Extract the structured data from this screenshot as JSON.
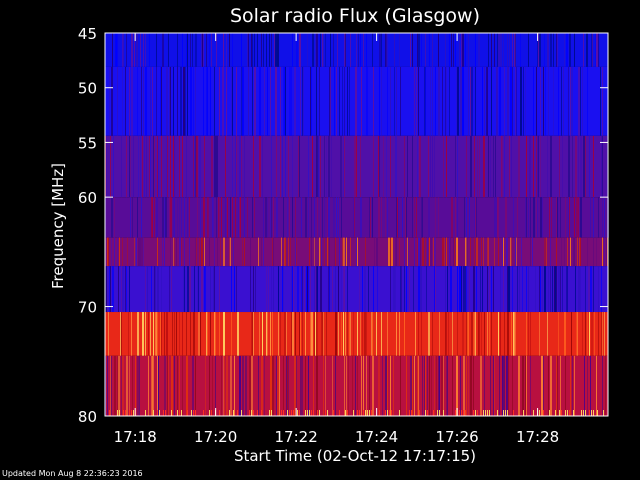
{
  "chart_data": {
    "type": "heatmap",
    "title": "Solar radio Flux (Glasgow)",
    "xlabel": "Start Time (02-Oct-12 17:17:15)",
    "ylabel": "Frequency [MHz]",
    "x_ticks": [
      "17:18",
      "17:20",
      "17:22",
      "17:24",
      "17:26",
      "17:28"
    ],
    "x_tick_minutes": [
      0.75,
      2.75,
      4.75,
      6.75,
      8.75,
      10.75
    ],
    "x_range_minutes": [
      0,
      12.5
    ],
    "y_ticks": [
      45,
      50,
      55,
      60,
      70,
      80
    ],
    "ylim": [
      45,
      80
    ],
    "bands": [
      {
        "from": 45,
        "to": 48.1,
        "level": "low",
        "color": "#1010e8"
      },
      {
        "from": 48.1,
        "to": 54.4,
        "level": "low",
        "color": "#1a10f0"
      },
      {
        "from": 54.4,
        "to": 60.0,
        "level": "medium-low",
        "color": "#5010a8"
      },
      {
        "from": 60.0,
        "to": 63.7,
        "level": "medium-low",
        "color": "#580c98"
      },
      {
        "from": 63.7,
        "to": 66.3,
        "level": "medium",
        "color": "#780c78"
      },
      {
        "from": 66.3,
        "to": 70.5,
        "level": "low",
        "color": "#3a10d0"
      },
      {
        "from": 70.5,
        "to": 74.5,
        "level": "high",
        "color": "#e82818"
      },
      {
        "from": 74.5,
        "to": 80.0,
        "level": "medium-high",
        "color": "#b81040"
      }
    ],
    "colors": {
      "background": "#000000",
      "axis": "#ffffff"
    }
  },
  "footer": "Updated Mon Aug  8 22:36:23 2016"
}
